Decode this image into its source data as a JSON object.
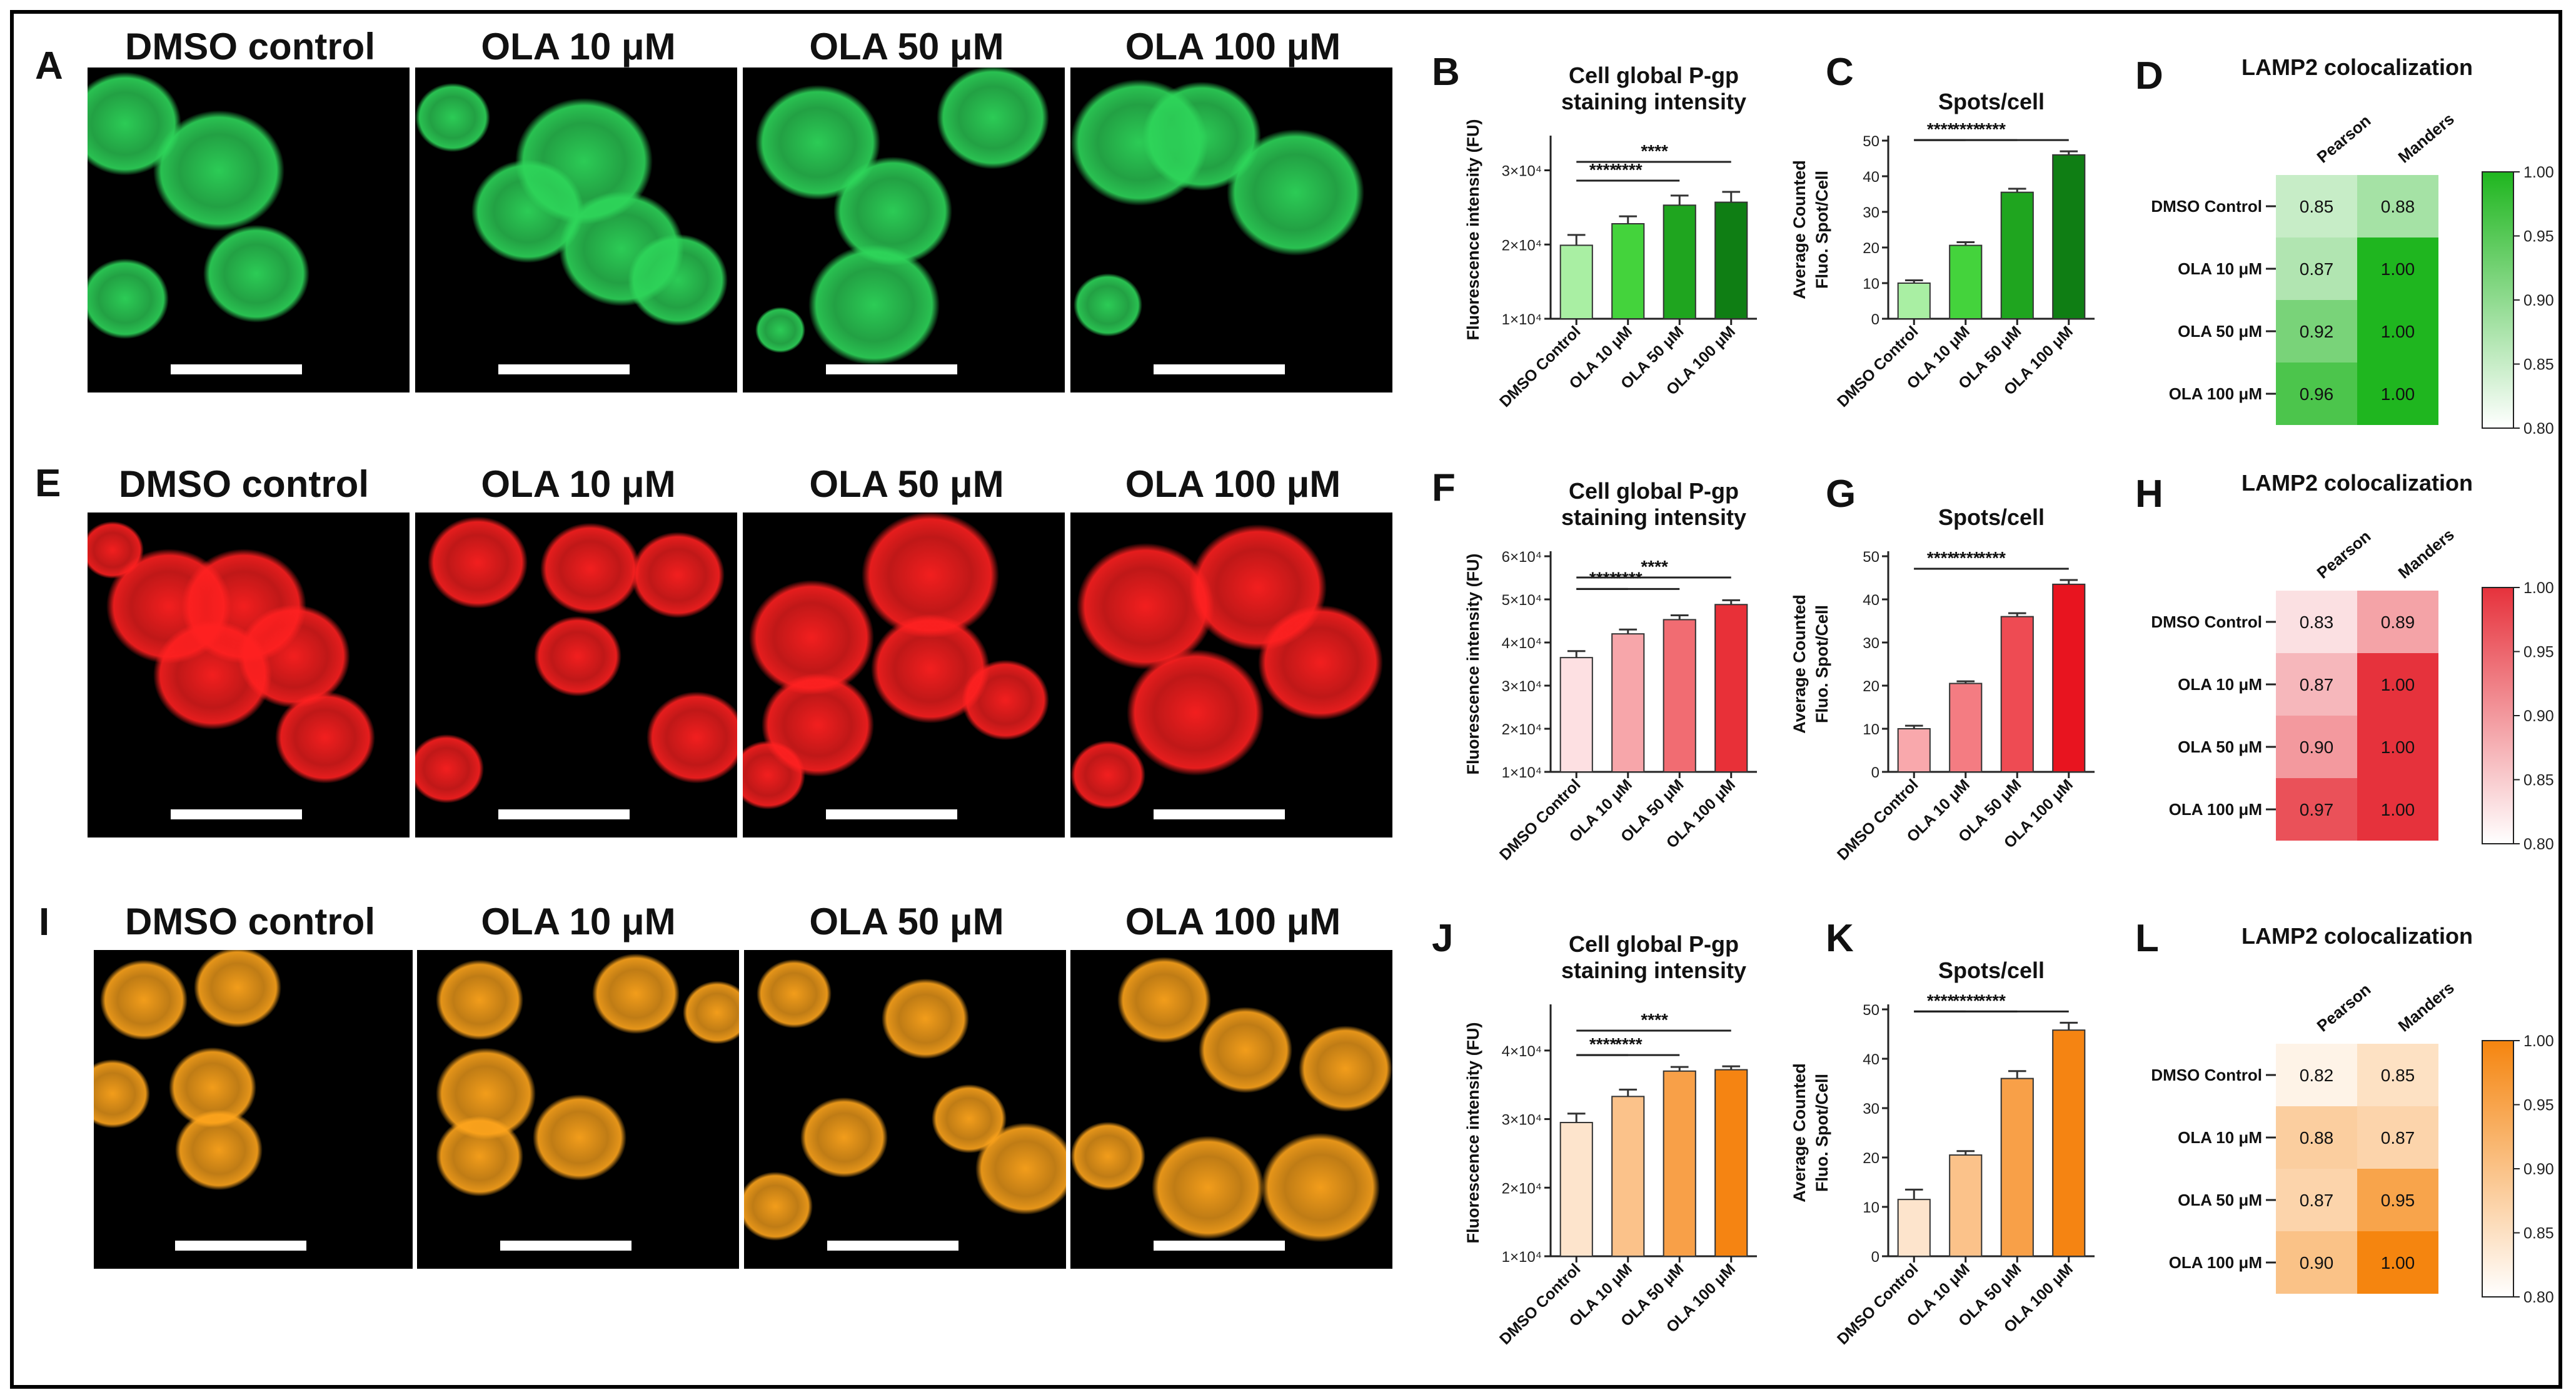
{
  "panels": [
    "A",
    "B",
    "C",
    "D",
    "E",
    "F",
    "G",
    "H",
    "I",
    "J",
    "K",
    "L"
  ],
  "condition_labels": [
    "DMSO control",
    "OLA 10 μM",
    "OLA 50 μM",
    "OLA 100 μM"
  ],
  "colors": {
    "green": "#1a9e1a",
    "red": "#e8323a",
    "orange": "#f27f0c"
  },
  "chart_data": [
    {
      "panel": "B",
      "type": "bar",
      "title": "Cell global P-gp staining intensity",
      "ylabel": "Fluorescence intensity (FU)",
      "categories": [
        "DMSO Control",
        "OLA 10 μM",
        "OLA 50 μM",
        "OLA 100 μM"
      ],
      "values": [
        19900,
        22800,
        25300,
        25700
      ],
      "errors": [
        1400,
        1000,
        1300,
        1400
      ],
      "ylim": [
        10000,
        34000
      ],
      "yticks": [
        10000,
        20000,
        30000
      ],
      "ytick_labels": [
        "1×10⁴",
        "2×10⁴",
        "3×10⁴"
      ],
      "colors": [
        "#a9efa3",
        "#44d33c",
        "#1fa51f",
        "#0f7e14"
      ],
      "significance": [
        "****",
        "****",
        "****"
      ]
    },
    {
      "panel": "C",
      "type": "bar",
      "title": "Spots/cell",
      "ylabel": "Average Counted Fluo. Spot/Cell",
      "categories": [
        "DMSO Control",
        "OLA 10 μM",
        "OLA 50 μM",
        "OLA 100 μM"
      ],
      "values": [
        10,
        20.6,
        35.5,
        46
      ],
      "errors": [
        0.8,
        0.9,
        1,
        1
      ],
      "ylim": [
        0,
        50
      ],
      "yticks": [
        0,
        10,
        20,
        30,
        40,
        50
      ],
      "ytick_labels": [
        "0",
        "10",
        "20",
        "30",
        "40",
        "50"
      ],
      "colors": [
        "#a9efa3",
        "#44d33c",
        "#1fa51f",
        "#0f7e14"
      ],
      "significance": [
        "****",
        "****",
        "****"
      ]
    },
    {
      "panel": "D",
      "type": "heatmap",
      "title": "LAMP2 colocalization",
      "columns": [
        "Pearson",
        "Manders"
      ],
      "rows": [
        "DMSO Control",
        "OLA 10 μM",
        "OLA 50 μM",
        "OLA 100 μM"
      ],
      "values": [
        [
          0.85,
          0.88
        ],
        [
          0.87,
          1.0
        ],
        [
          0.92,
          1.0
        ],
        [
          0.96,
          1.0
        ]
      ],
      "value_labels": [
        [
          "0.85",
          "0.88"
        ],
        [
          "0.87",
          "1.00"
        ],
        [
          "0.92",
          "1.00"
        ],
        [
          "0.96",
          "1.00"
        ]
      ],
      "scale": [
        0.8,
        1.0
      ],
      "scale_ticks": [
        "0.80",
        "0.85",
        "0.90",
        "0.95",
        "1.00"
      ],
      "color_low": "#ffffff",
      "color_high": "#1fb61f"
    },
    {
      "panel": "F",
      "type": "bar",
      "title": "Cell global P-gp staining intensity",
      "ylabel": "Fluorescence intensity (FU)",
      "categories": [
        "DMSO Control",
        "OLA 10 μM",
        "OLA 50 μM",
        "OLA 100 μM"
      ],
      "values": [
        36500,
        42000,
        45300,
        48800
      ],
      "errors": [
        1500,
        1000,
        1000,
        1000
      ],
      "ylim": [
        10000,
        60000
      ],
      "yticks": [
        10000,
        20000,
        30000,
        40000,
        50000,
        60000
      ],
      "ytick_labels": [
        "1×10⁴",
        "2×10⁴",
        "3×10⁴",
        "4×10⁴",
        "5×10⁴",
        "6×10⁴"
      ],
      "colors": [
        "#fde0e2",
        "#f7a6aa",
        "#f16c72",
        "#e83038"
      ],
      "significance": [
        "****",
        "****",
        "****"
      ]
    },
    {
      "panel": "G",
      "type": "bar",
      "title": "Spots/cell",
      "ylabel": "Average Counted Fluo. Spot/Cell",
      "categories": [
        "DMSO Control",
        "OLA 10 μM",
        "OLA 50 μM",
        "OLA 100 μM"
      ],
      "values": [
        10,
        20.5,
        36,
        43.5
      ],
      "errors": [
        0.7,
        0.5,
        0.8,
        1
      ],
      "ylim": [
        0,
        50
      ],
      "yticks": [
        0,
        10,
        20,
        30,
        40,
        50
      ],
      "ytick_labels": [
        "0",
        "10",
        "20",
        "30",
        "40",
        "50"
      ],
      "colors": [
        "#f9a8ac",
        "#f47c82",
        "#ee4b53",
        "#e8141f"
      ],
      "significance": [
        "****",
        "****",
        "****"
      ]
    },
    {
      "panel": "H",
      "type": "heatmap",
      "title": "LAMP2 colocalization",
      "columns": [
        "Pearson",
        "Manders"
      ],
      "rows": [
        "DMSO Control",
        "OLA 10 μM",
        "OLA 50 μM",
        "OLA 100 μM"
      ],
      "values": [
        [
          0.83,
          0.89
        ],
        [
          0.87,
          1.0
        ],
        [
          0.9,
          1.0
        ],
        [
          0.97,
          1.0
        ]
      ],
      "value_labels": [
        [
          "0.83",
          "0.89"
        ],
        [
          "0.87",
          "1.00"
        ],
        [
          "0.90",
          "1.00"
        ],
        [
          "0.97",
          "1.00"
        ]
      ],
      "scale": [
        0.8,
        1.0
      ],
      "scale_ticks": [
        "0.80",
        "0.85",
        "0.90",
        "0.95",
        "1.00"
      ],
      "color_low": "#ffffff",
      "color_high": "#e6323c"
    },
    {
      "panel": "J",
      "type": "bar",
      "title": "Cell global P-gp staining intensity",
      "ylabel": "Fluorescence intensity (FU)",
      "categories": [
        "DMSO Control",
        "OLA 10 μM",
        "OLA 50 μM",
        "OLA 100 μM"
      ],
      "values": [
        29500,
        33300,
        37000,
        37200
      ],
      "errors": [
        1300,
        1000,
        600,
        500
      ],
      "ylim": [
        10000,
        46000
      ],
      "yticks": [
        10000,
        20000,
        30000,
        40000
      ],
      "ytick_labels": [
        "1×10⁴",
        "2×10⁴",
        "3×10⁴",
        "4×10⁴"
      ],
      "colors": [
        "#fde4cc",
        "#fbc28a",
        "#f8a048",
        "#f58412"
      ],
      "significance": [
        "****",
        "****",
        "****"
      ]
    },
    {
      "panel": "K",
      "type": "bar",
      "title": "Spots/cell",
      "ylabel": "Average Counted Fluo. Spot/Cell",
      "categories": [
        "DMSO Control",
        "OLA 10 μM",
        "OLA 50 μM",
        "OLA 100 μM"
      ],
      "values": [
        11.5,
        20.5,
        36,
        45.8
      ],
      "errors": [
        2,
        0.8,
        1.5,
        1.5
      ],
      "ylim": [
        0,
        50
      ],
      "yticks": [
        0,
        10,
        20,
        30,
        40,
        50
      ],
      "ytick_labels": [
        "0",
        "10",
        "20",
        "30",
        "40",
        "50"
      ],
      "colors": [
        "#fde4cc",
        "#fbc28a",
        "#f8a048",
        "#f58412"
      ],
      "significance": [
        "****",
        "****",
        "****"
      ]
    },
    {
      "panel": "L",
      "type": "heatmap",
      "title": "LAMP2 colocalization",
      "columns": [
        "Pearson",
        "Manders"
      ],
      "rows": [
        "DMSO Control",
        "OLA 10 μM",
        "OLA 50 μM",
        "OLA 100 μM"
      ],
      "values": [
        [
          0.82,
          0.85
        ],
        [
          0.88,
          0.87
        ],
        [
          0.87,
          0.95
        ],
        [
          0.9,
          1.0
        ]
      ],
      "value_labels": [
        [
          "0.82",
          "0.85"
        ],
        [
          "0.88",
          "0.87"
        ],
        [
          "0.87",
          "0.95"
        ],
        [
          "0.90",
          "1.00"
        ]
      ],
      "scale": [
        0.8,
        1.0
      ],
      "scale_ticks": [
        "0.80",
        "0.85",
        "0.90",
        "0.95",
        "1.00"
      ],
      "color_low": "#ffffff",
      "color_high": "#f5850f"
    }
  ]
}
